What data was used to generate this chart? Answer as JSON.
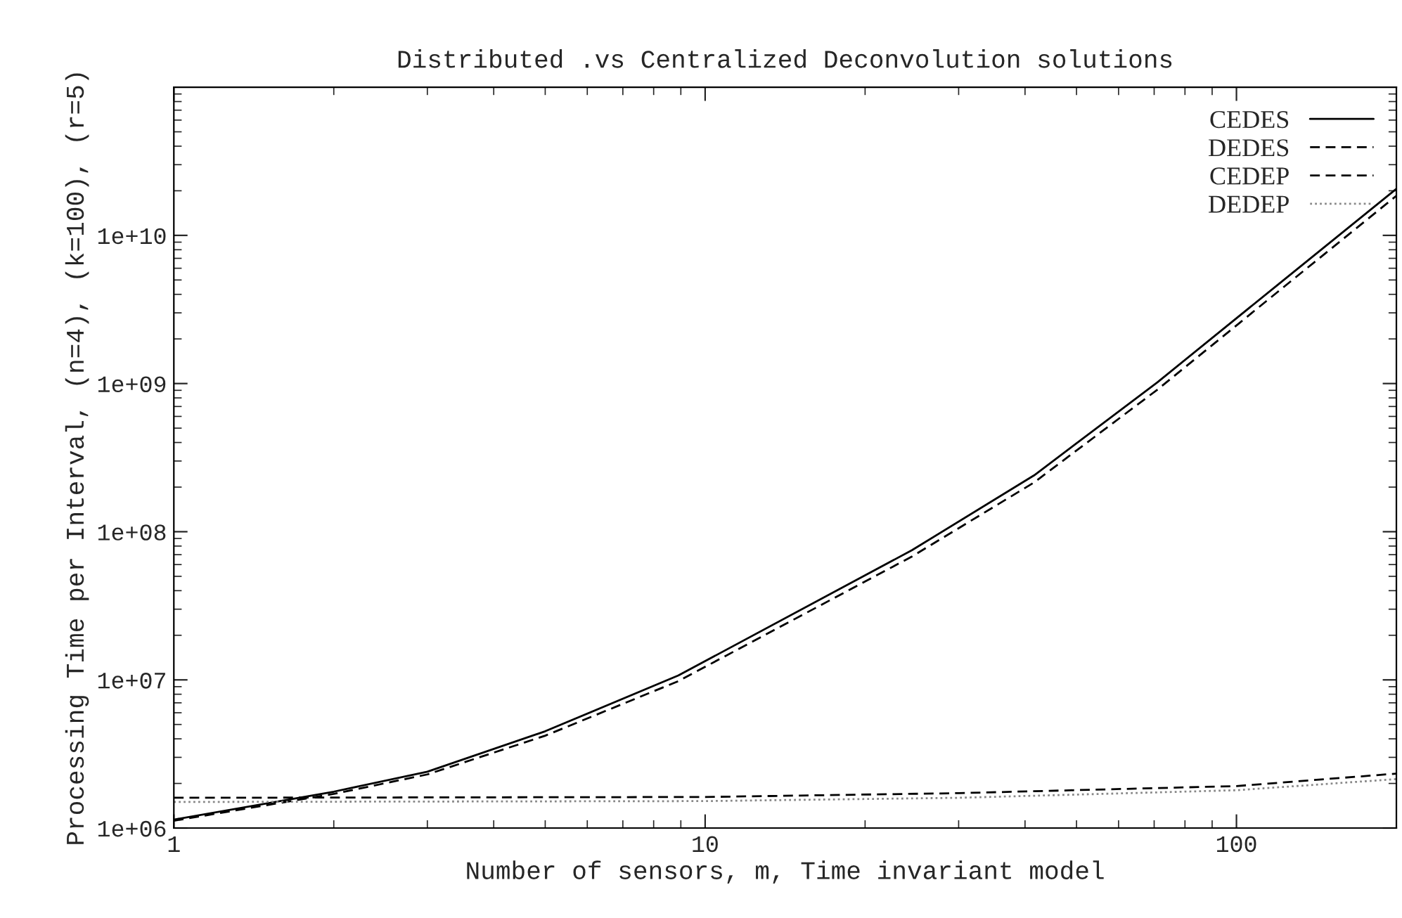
{
  "chart_data": {
    "type": "line",
    "title": "Distributed .vs Centralized Deconvolution solutions",
    "xlabel": "Number of sensors, m, Time invariant model",
    "ylabel": "Processing Time per Interval, (n=4), (k=100), (r=5)",
    "log": "xy",
    "xlim": [
      1,
      200
    ],
    "xticks": [
      1,
      10,
      100
    ],
    "ylim": [
      1000000,
      100000000000
    ],
    "yticks": [
      {
        "value": 1000000,
        "label": "1e+06"
      },
      {
        "value": 10000000,
        "label": "1e+07"
      },
      {
        "value": 100000000,
        "label": "1e+08"
      },
      {
        "value": 1000000000,
        "label": "1e+09"
      },
      {
        "value": 10000000000,
        "label": "1e+10"
      }
    ],
    "grid": false,
    "legend": "top right",
    "marker": "none",
    "series": [
      {
        "name": "CEDES",
        "color": "#000000",
        "line_style": "solid",
        "x": [
          1,
          2,
          3,
          5,
          8.9,
          24.5,
          41.6,
          71,
          121,
          200
        ],
        "values": [
          1140000,
          1760000,
          2400000,
          4500000,
          10700000,
          75000000,
          240000000,
          1020000000,
          4800000000,
          20600000000
        ]
      },
      {
        "name": "DEDES",
        "color": "#000000",
        "line_style": "dashed",
        "x": [
          1,
          10,
          30,
          100,
          200
        ],
        "values": [
          1600000,
          1620000,
          1720000,
          1920000,
          2330000
        ]
      },
      {
        "name": "CEDEP",
        "color": "#000000",
        "line_style": "dashed",
        "x": [
          1,
          2,
          3,
          5,
          8.9,
          24.5,
          41.6,
          71,
          121,
          200
        ],
        "values": [
          1120000,
          1700000,
          2300000,
          4200000,
          9800000,
          68000000,
          215000000,
          910000000,
          4300000000,
          18500000000
        ]
      },
      {
        "name": "DEDEP",
        "color": "#888888",
        "line_style": "dotted",
        "x": [
          1,
          10,
          30,
          100,
          200
        ],
        "values": [
          1500000,
          1520000,
          1600000,
          1800000,
          2140000
        ]
      }
    ]
  }
}
